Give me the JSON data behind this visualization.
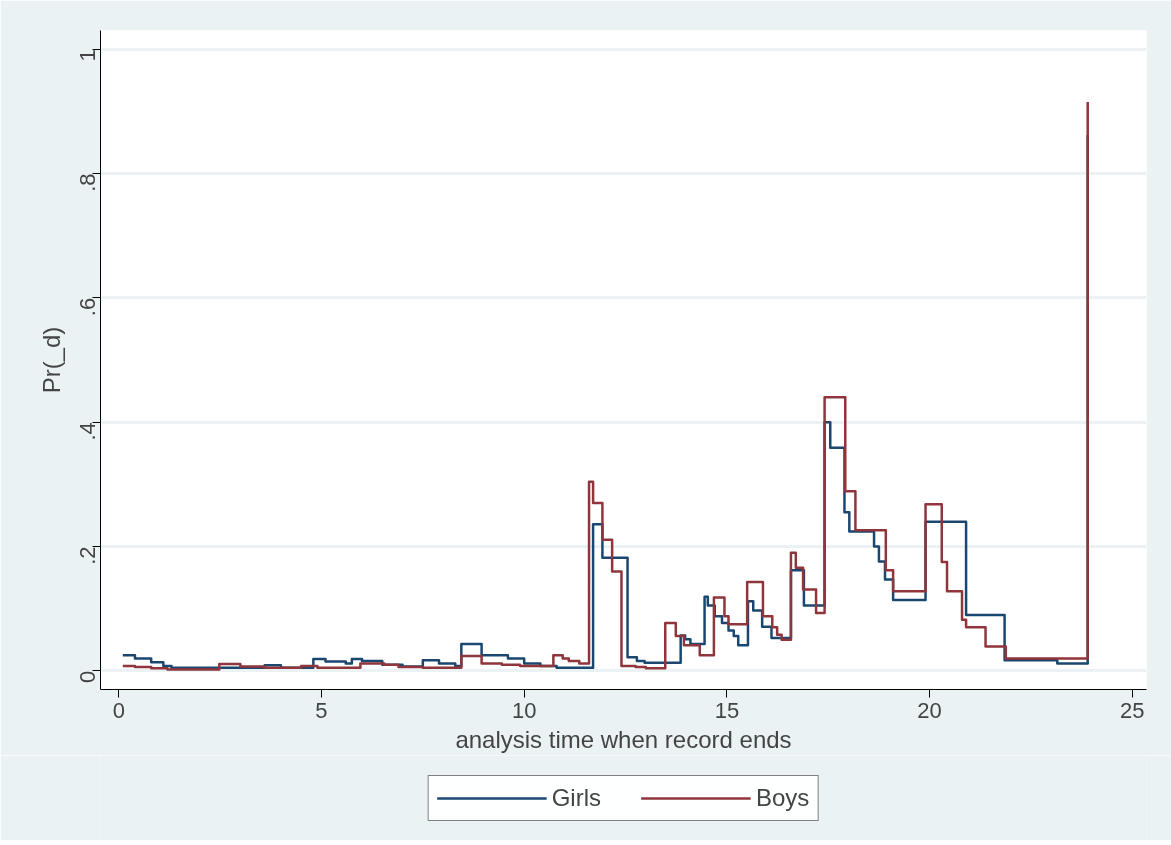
{
  "chart_data": {
    "type": "step",
    "xlabel": "analysis time when record ends",
    "ylabel": "Pr(_d)",
    "xlim": [
      -0.45,
      25.35
    ],
    "ylim": [
      -0.03,
      1.03
    ],
    "xticks": [
      0,
      5,
      10,
      15,
      20,
      25
    ],
    "yticks": [
      0,
      {
        "value": 0.2,
        "label": ".2"
      },
      {
        "value": 0.4,
        "label": ".4"
      },
      {
        "value": 0.6,
        "label": ".6"
      },
      {
        "value": 0.8,
        "label": ".8"
      },
      1
    ],
    "grid": "y",
    "legend": "bottom",
    "line_style": "solid",
    "series": [
      {
        "name": "Girls",
        "color": "#1a476f",
        "x": [
          0.1,
          0.4,
          0.8,
          1.1,
          1.3,
          3.6,
          4.0,
          4.8,
          5.1,
          5.6,
          5.75,
          6.0,
          6.5,
          7.0,
          7.5,
          7.9,
          8.3,
          8.45,
          8.95,
          9.6,
          10.0,
          10.4,
          10.8,
          11.7,
          11.93,
          12.55,
          12.78,
          12.97,
          13.86,
          13.97,
          14.1,
          14.45,
          14.53,
          14.7,
          14.88,
          15.04,
          15.17,
          15.28,
          15.52,
          15.65,
          15.87,
          16.1,
          16.58,
          16.9,
          17.41,
          17.55,
          17.9,
          18.02,
          18.63,
          18.75,
          18.9,
          19.1,
          19.9,
          20.9,
          21.85,
          23.15,
          23.9
        ],
        "values": [
          0.025,
          0.02,
          0.014,
          0.008,
          0.005,
          0.009,
          0.005,
          0.019,
          0.015,
          0.012,
          0.019,
          0.016,
          0.01,
          0.007,
          0.017,
          0.012,
          0.008,
          0.043,
          0.025,
          0.02,
          0.012,
          0.008,
          0.005,
          0.236,
          0.182,
          0.022,
          0.016,
          0.013,
          0.057,
          0.051,
          0.043,
          0.119,
          0.105,
          0.088,
          0.077,
          0.065,
          0.056,
          0.041,
          0.112,
          0.097,
          0.071,
          0.053,
          0.162,
          0.105,
          0.4,
          0.359,
          0.255,
          0.224,
          0.2,
          0.176,
          0.147,
          0.114,
          0.24,
          0.09,
          0.017,
          0.012,
          0.862
        ]
      },
      {
        "name": "Boys",
        "color": "#90353b",
        "x": [
          0.1,
          0.4,
          0.8,
          1.2,
          2.48,
          3.0,
          3.6,
          4.5,
          4.9,
          5.96,
          6.55,
          6.9,
          7.5,
          8.45,
          8.95,
          9.45,
          9.9,
          10.72,
          10.95,
          11.1,
          11.36,
          11.6,
          11.7,
          11.93,
          12.17,
          12.4,
          12.75,
          13.0,
          13.48,
          13.74,
          13.94,
          14.33,
          14.68,
          14.94,
          15.04,
          15.5,
          15.89,
          16.12,
          16.24,
          16.35,
          16.58,
          16.7,
          16.88,
          17.2,
          17.41,
          17.92,
          18.17,
          18.92,
          19.1,
          19.9,
          20.3,
          20.43,
          20.8,
          20.9,
          21.38,
          21.88,
          23.9
        ],
        "values": [
          0.008,
          0.006,
          0.004,
          0.002,
          0.011,
          0.007,
          0.005,
          0.008,
          0.005,
          0.012,
          0.01,
          0.006,
          0.005,
          0.024,
          0.012,
          0.01,
          0.008,
          0.025,
          0.02,
          0.016,
          0.012,
          0.304,
          0.27,
          0.211,
          0.16,
          0.008,
          0.006,
          0.004,
          0.077,
          0.056,
          0.041,
          0.025,
          0.118,
          0.088,
          0.075,
          0.143,
          0.088,
          0.07,
          0.058,
          0.05,
          0.19,
          0.166,
          0.131,
          0.093,
          0.44,
          0.289,
          0.226,
          0.162,
          0.128,
          0.268,
          0.175,
          0.128,
          0.082,
          0.07,
          0.039,
          0.02,
          0.915
        ]
      }
    ]
  }
}
